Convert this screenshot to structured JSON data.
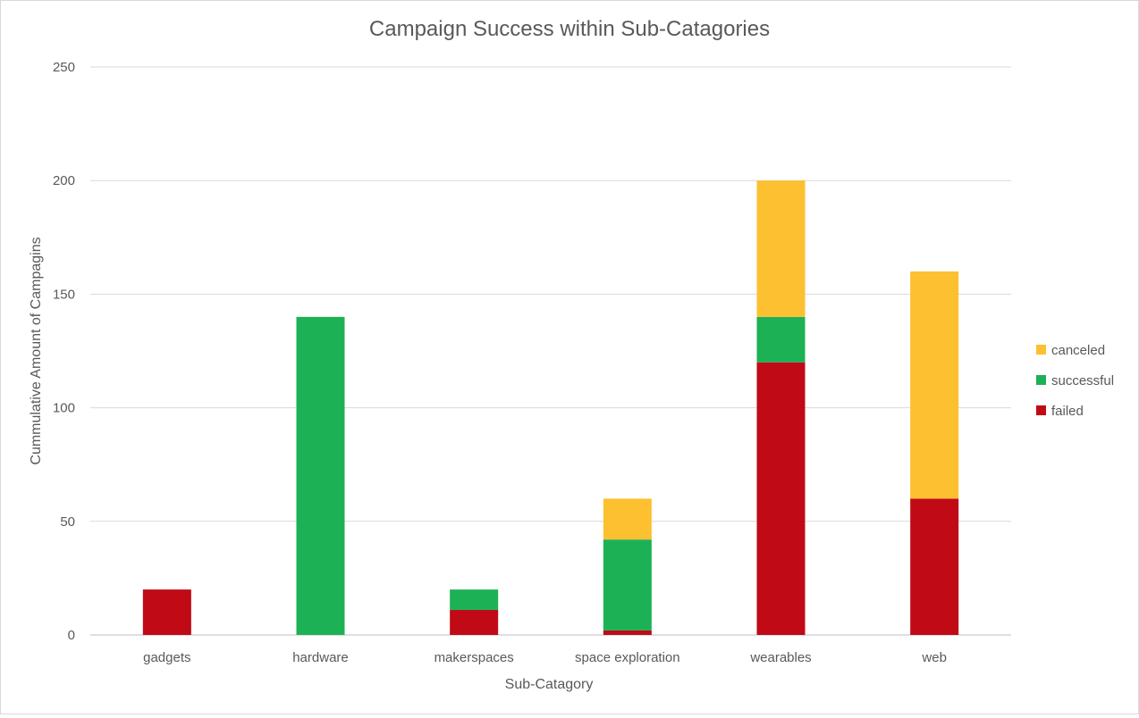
{
  "chart_data": {
    "type": "bar",
    "stacked": true,
    "title": "Campaign Success within Sub-Catagories",
    "xlabel": "Sub-Catagory",
    "ylabel": "Cummulative Amount of Campagins",
    "categories": [
      "gadgets",
      "hardware",
      "makerspaces",
      "space exploration",
      "wearables",
      "web"
    ],
    "series": [
      {
        "name": "failed",
        "color": "#C00A16",
        "values": [
          20,
          0,
          11,
          2,
          120,
          60
        ]
      },
      {
        "name": "successful",
        "color": "#1DB156",
        "values": [
          0,
          140,
          9,
          40,
          20,
          0
        ]
      },
      {
        "name": "canceled",
        "color": "#FCC030",
        "values": [
          0,
          0,
          0,
          18,
          60,
          100
        ]
      }
    ],
    "ylim": [
      0,
      250
    ],
    "yticks": [
      0,
      50,
      100,
      150,
      200,
      250
    ],
    "grid": true,
    "legend_position": "right",
    "legend_order": [
      "canceled",
      "successful",
      "failed"
    ]
  }
}
